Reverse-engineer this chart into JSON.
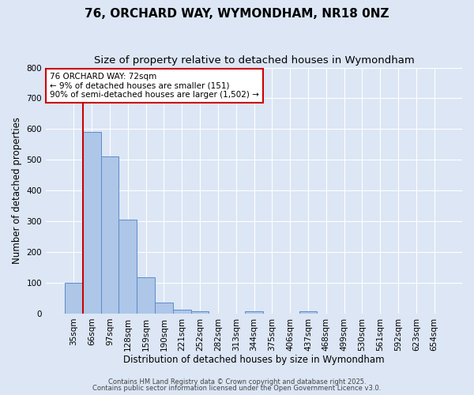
{
  "title": "76, ORCHARD WAY, WYMONDHAM, NR18 0NZ",
  "subtitle": "Size of property relative to detached houses in Wymondham",
  "xlabel": "Distribution of detached houses by size in Wymondham",
  "ylabel": "Number of detached properties",
  "bar_labels": [
    "35sqm",
    "66sqm",
    "97sqm",
    "128sqm",
    "159sqm",
    "190sqm",
    "221sqm",
    "252sqm",
    "282sqm",
    "313sqm",
    "344sqm",
    "375sqm",
    "406sqm",
    "437sqm",
    "468sqm",
    "499sqm",
    "530sqm",
    "561sqm",
    "592sqm",
    "623sqm",
    "654sqm"
  ],
  "bar_values": [
    100,
    590,
    510,
    305,
    118,
    36,
    13,
    7,
    0,
    0,
    7,
    0,
    0,
    7,
    0,
    0,
    0,
    0,
    0,
    0,
    0
  ],
  "bar_color": "#aec6e8",
  "bar_edge_color": "#5b8cc8",
  "background_color": "#dce6f5",
  "grid_color": "#ffffff",
  "vline_color": "#cc0000",
  "annotation_text": "76 ORCHARD WAY: 72sqm\n← 9% of detached houses are smaller (151)\n90% of semi-detached houses are larger (1,502) →",
  "annotation_box_color": "#ffffff",
  "annotation_box_edge": "#cc0000",
  "ylim": [
    0,
    800
  ],
  "yticks": [
    0,
    100,
    200,
    300,
    400,
    500,
    600,
    700,
    800
  ],
  "title_fontsize": 11,
  "subtitle_fontsize": 9.5,
  "axis_label_fontsize": 8.5,
  "tick_fontsize": 7.5,
  "annotation_fontsize": 7.5,
  "footer_fontsize": 6.0,
  "footer_line1": "Contains HM Land Registry data © Crown copyright and database right 2025.",
  "footer_line2": "Contains public sector information licensed under the Open Government Licence v3.0."
}
